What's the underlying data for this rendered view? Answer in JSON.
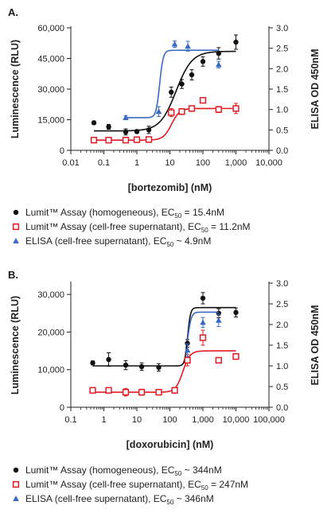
{
  "colors": {
    "homogeneous": "#111111",
    "supernatant": "#e31b23",
    "elisa": "#3a6bc4",
    "axis": "#222222"
  },
  "chart_data": [
    {
      "panel": "A.",
      "type": "scatter",
      "x_scale": "log",
      "xlabel": "[bortezomib] (nM)",
      "ylabel": "Luminescence (RLU)",
      "y2label": "ELISA OD 450nM",
      "xlim": [
        0.01,
        10000
      ],
      "ylim": [
        0,
        60000
      ],
      "y2lim": [
        0,
        3.0
      ],
      "x_ticks": [
        "0.01",
        "0.1",
        "1",
        "10",
        "100",
        "1,000",
        "10,000"
      ],
      "y_ticks": [
        "0",
        "15,000",
        "30,000",
        "45,000",
        "60,000"
      ],
      "y2_ticks": [
        "0.0",
        "0.5",
        "1.0",
        "1.5",
        "2.0",
        "2.5",
        "3.0"
      ],
      "series": [
        {
          "name": "Lumit™ Assay (homogeneous), EC",
          "ec_sub": "50",
          "ec_value": " = 15.4nM",
          "marker": "filled-circle",
          "x": [
            0.05,
            0.14,
            0.46,
            1.0,
            2.3,
            11,
            23,
            46,
            100,
            300,
            1000
          ],
          "y": [
            13500,
            11500,
            9000,
            9200,
            10000,
            28500,
            32500,
            37000,
            43500,
            47500,
            53000
          ],
          "err": [
            800,
            1200,
            1500,
            900,
            1800,
            2500,
            2200,
            2500,
            2300,
            2800,
            3500
          ],
          "fit": {
            "bottom": 9500,
            "top": 48500,
            "ec50": 15.4,
            "hill": 1.8
          }
        },
        {
          "name": "Lumit™ Assay (cell-free supernatant), EC",
          "ec_sub": "50",
          "ec_value": " = 11.2nM",
          "marker": "open-square",
          "x": [
            0.05,
            0.14,
            0.46,
            1.0,
            2.3,
            11,
            23,
            46,
            100,
            300,
            1000
          ],
          "y": [
            5000,
            5000,
            5000,
            5200,
            5300,
            18500,
            19000,
            20500,
            24500,
            20000,
            20500
          ],
          "err": [
            300,
            300,
            300,
            300,
            300,
            2000,
            1500,
            1200,
            1000,
            1500,
            2500
          ],
          "fit": {
            "bottom": 5000,
            "top": 20500,
            "ec50": 11.2,
            "hill": 3.5
          }
        },
        {
          "name": "ELISA (cell-free supernatant), EC",
          "ec_sub": "50",
          "ec_value": " ~ 4.9nM",
          "marker": "filled-triangle",
          "axis": "y2",
          "x": [
            0.46,
            4.6,
            14,
            35,
            300
          ],
          "y": [
            0.8,
            0.95,
            2.6,
            2.55,
            2.1
          ],
          "err": [
            0.05,
            0.12,
            0.08,
            0.12,
            0.08
          ],
          "fit": {
            "bottom": 0.8,
            "top": 2.45,
            "ec50": 4.9,
            "hill": 8
          }
        }
      ]
    },
    {
      "panel": "B.",
      "type": "scatter",
      "x_scale": "log",
      "xlabel": "[doxorubicin] (nM)",
      "ylabel": "Luminescence (RLU)",
      "y2label": "ELISA OD 450nM",
      "xlim": [
        0.1,
        100000
      ],
      "ylim": [
        0,
        33000
      ],
      "y2lim": [
        0,
        3.0
      ],
      "x_ticks": [
        "0.1",
        "1",
        "10",
        "100",
        "1,000",
        "10,000",
        "100,000"
      ],
      "y_ticks": [
        "0",
        "10,000",
        "20,000",
        "30,000"
      ],
      "y2_ticks": [
        "0.0",
        "0.5",
        "1.0",
        "1.5",
        "2.0",
        "2.5",
        "3.0"
      ],
      "series": [
        {
          "name": "Lumit™ Assay (homogeneous), EC",
          "ec_sub": "50",
          "ec_value": " ~ 344nM",
          "marker": "filled-circle",
          "x": [
            0.46,
            1.4,
            4.6,
            14,
            46,
            340,
            1000,
            3000,
            10000
          ],
          "y": [
            11800,
            12700,
            11200,
            10800,
            10600,
            17000,
            29000,
            25000,
            25200
          ],
          "err": [
            500,
            1800,
            1200,
            1000,
            1000,
            1000,
            1500,
            1200,
            1200
          ],
          "fit": {
            "bottom": 11000,
            "top": 26500,
            "ec50": 344,
            "hill": 10
          }
        },
        {
          "name": "Lumit™ Assay (cell-free supernatant), EC",
          "ec_sub": "50",
          "ec_value": " = 247nM",
          "marker": "open-square",
          "x": [
            0.46,
            1.4,
            4.6,
            14,
            46,
            140,
            340,
            1000,
            3000,
            10000
          ],
          "y": [
            4500,
            4500,
            4000,
            4000,
            4000,
            4500,
            12500,
            18500,
            12500,
            13500
          ],
          "err": [
            500,
            400,
            1000,
            800,
            700,
            700,
            1500,
            2000,
            600,
            600
          ],
          "fit": {
            "bottom": 4000,
            "top": 15000,
            "ec50": 247,
            "hill": 4
          }
        },
        {
          "name": "ELISA (cell-free supernatant), EC",
          "ec_sub": "50",
          "ec_value": " ~ 346nM",
          "marker": "filled-triangle",
          "axis": "y2",
          "x": [
            340,
            1000,
            3000
          ],
          "y": [
            1.38,
            2.05,
            2.1
          ],
          "err": [
            0.15,
            0.12,
            0.15
          ],
          "fit": {
            "bottom": 1.0,
            "top": 2.3,
            "ec50": 346,
            "hill": 8
          }
        }
      ]
    }
  ]
}
